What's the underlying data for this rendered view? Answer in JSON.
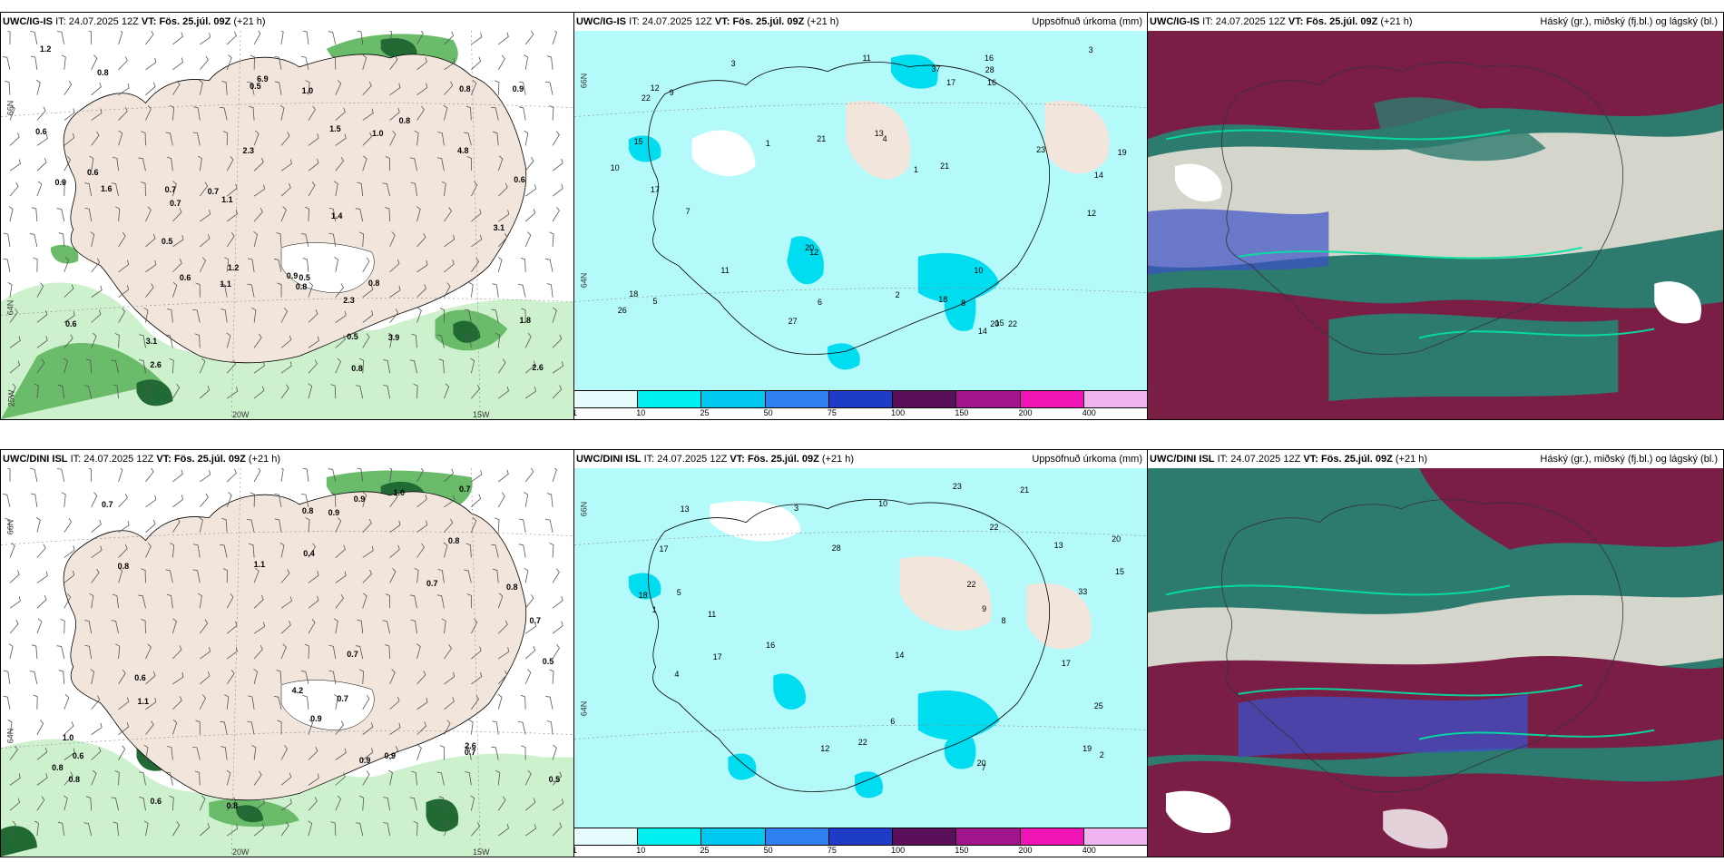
{
  "rows": [
    {
      "model": "UWC/IG-IS",
      "it_label": "IT:",
      "it_value": "24.07.2025 12Z",
      "vt_label": "VT:",
      "vt_value": "Fös. 25.júl. 09Z",
      "lead": "(+21 h)",
      "wind_axis": {
        "lat_top": "66N",
        "lat_mid": "64N",
        "lon_left": "25W",
        "lon_mid": "20W",
        "lon_right": "15W"
      },
      "precip_axis": {
        "lat_top": "66N",
        "lat_mid": "64N"
      }
    },
    {
      "model": "UWC/DINI ISL",
      "it_label": "IT:",
      "it_value": "24.07.2025 12Z",
      "vt_label": "VT:",
      "vt_value": "Fös. 25.júl. 09Z",
      "lead": "(+21 h)",
      "wind_axis": {
        "lat_top": "66N",
        "lat_mid": "64N",
        "lon_left": "",
        "lon_mid": "20W",
        "lon_right": "15W"
      },
      "precip_axis": {
        "lat_top": "66N",
        "lat_mid": "64N"
      }
    }
  ],
  "precip_title": "Uppsöfnuð úrkoma (mm)",
  "cloud_title": "Háský (gr.), miðský (fj.bl.) og lágský (bl.)",
  "legend": {
    "ticks": [
      "1",
      "10",
      "25",
      "50",
      "75",
      "100",
      "150",
      "200",
      "400"
    ],
    "colors": [
      "#e6fcfc",
      "#00f0f0",
      "#00c8f0",
      "#2f80f0",
      "#1e3cc8",
      "#5a0f5a",
      "#a0148c",
      "#f014b4",
      "#f0b4f0"
    ]
  },
  "colors": {
    "land": "#f2e6dc",
    "precip_light_green": "#c8f0c8",
    "precip_green": "#5ab45a",
    "precip_dark_green": "#0a5a1e",
    "precip_pink": "#e678e6",
    "cyan_fill": "#b4fafa",
    "cyan_mid": "#00dcf0",
    "cloud_high": "#ffffff",
    "cloud_mid": "#7a1e46",
    "cloud_low": "#2d7a6e"
  },
  "wind_values_top": [
    "0.8",
    "1.0",
    "3.9",
    "1.8",
    "0.8",
    "2.3",
    "0.6",
    "0.7",
    "0.8",
    "0.9",
    "1.2",
    "0.6",
    "0.5",
    "0.8",
    "0.6",
    "2.6",
    "0.9",
    "0.5",
    "0.5",
    "1.2",
    "1.1",
    "4.8",
    "6.9",
    "3.1",
    "0.7",
    "0.8",
    "0.5",
    "0.6",
    "1.5",
    "1.4",
    "1.6",
    "2.6",
    "2.3",
    "3.1",
    "0.6",
    "0.7",
    "1.0",
    "0.9",
    "0.8",
    "1.1"
  ],
  "wind_values_bottom": [
    "0.7",
    "0.9",
    "0.8",
    "0.7",
    "0.4",
    "2.6",
    "0.7",
    "0.8",
    "1.0",
    "0.8",
    "0.8",
    "0.5",
    "0.9",
    "0.7",
    "1.0",
    "0.9",
    "0.8",
    "0.6",
    "0.7",
    "0.5",
    "0.7",
    "0.9",
    "0.8",
    "1.1",
    "0.6",
    "4.2",
    "0.9",
    "0.8",
    "0.6",
    "0.7",
    "1.1"
  ],
  "precip_values_top": [
    "12",
    "11",
    "1",
    "18",
    "15",
    "8",
    "9",
    "7",
    "14",
    "10",
    "22",
    "20",
    "16",
    "14",
    "12",
    "13",
    "19",
    "5",
    "6",
    "3",
    "17",
    "16",
    "18",
    "21",
    "23",
    "28",
    "20",
    "26",
    "37",
    "27",
    "17",
    "22",
    "21",
    "15",
    "12",
    "1",
    "2",
    "3",
    "4",
    "11",
    "10"
  ],
  "precip_values_bottom": [
    "12",
    "17",
    "22",
    "16",
    "13",
    "19",
    "20",
    "18",
    "21",
    "22",
    "11",
    "23",
    "25",
    "17",
    "13",
    "33",
    "28",
    "20",
    "15",
    "17",
    "14",
    "22",
    "10",
    "9",
    "8",
    "7",
    "6",
    "5",
    "4",
    "3",
    "2",
    "1"
  ]
}
